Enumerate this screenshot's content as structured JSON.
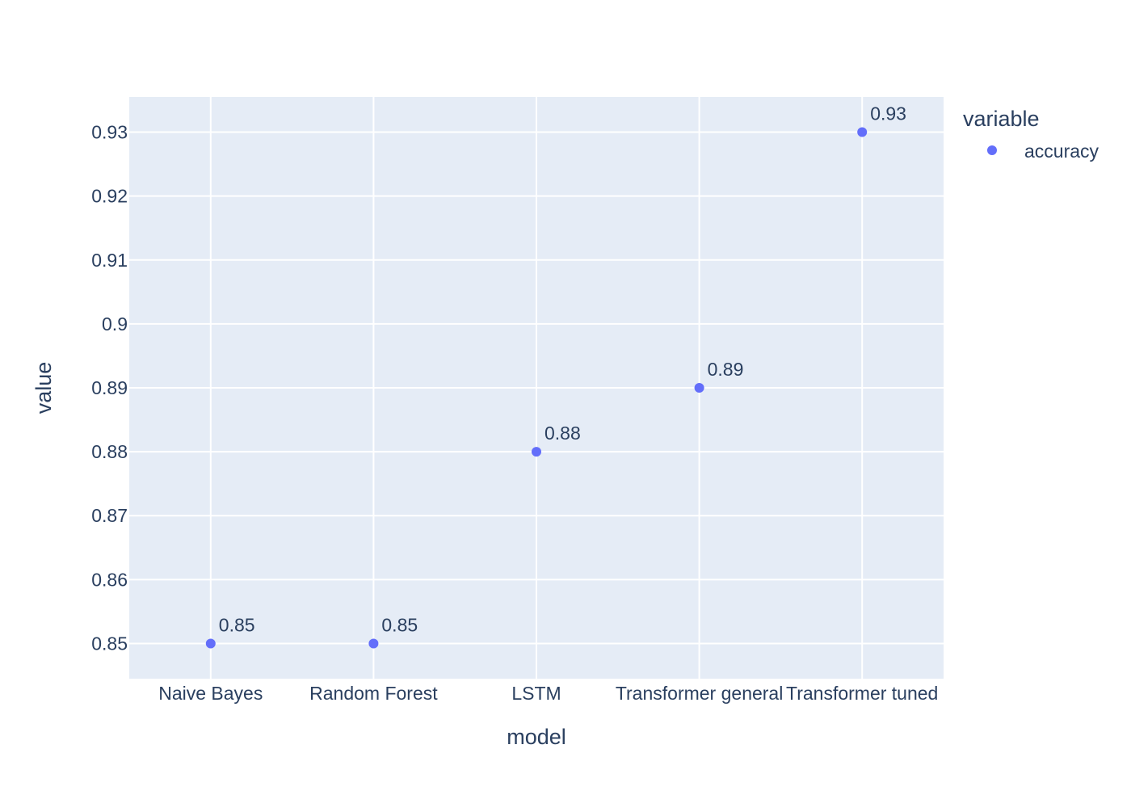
{
  "chart_data": {
    "type": "scatter",
    "categories": [
      "Naive Bayes",
      "Random Forest",
      "LSTM",
      "Transformer general",
      "Transformer tuned"
    ],
    "series": [
      {
        "name": "accuracy",
        "values": [
          0.85,
          0.85,
          0.88,
          0.89,
          0.93
        ],
        "labels": [
          "0.85",
          "0.85",
          "0.88",
          "0.89",
          "0.93"
        ]
      }
    ],
    "xlabel": "model",
    "ylabel": "value",
    "ylim": [
      0.8445,
      0.9355
    ],
    "yticks": [
      0.85,
      0.86,
      0.87,
      0.88,
      0.89,
      0.9,
      0.91,
      0.92,
      0.93
    ],
    "ytick_labels": [
      "0.85",
      "0.86",
      "0.87",
      "0.88",
      "0.89",
      "0.9",
      "0.91",
      "0.92",
      "0.93"
    ],
    "legend": {
      "title": "variable",
      "placement": "top-right"
    },
    "grid": true,
    "colors": {
      "plot_bg": "#e5ecf6",
      "grid": "#ffffff",
      "marker": "#636efa",
      "text": "#2a3f5f"
    }
  }
}
